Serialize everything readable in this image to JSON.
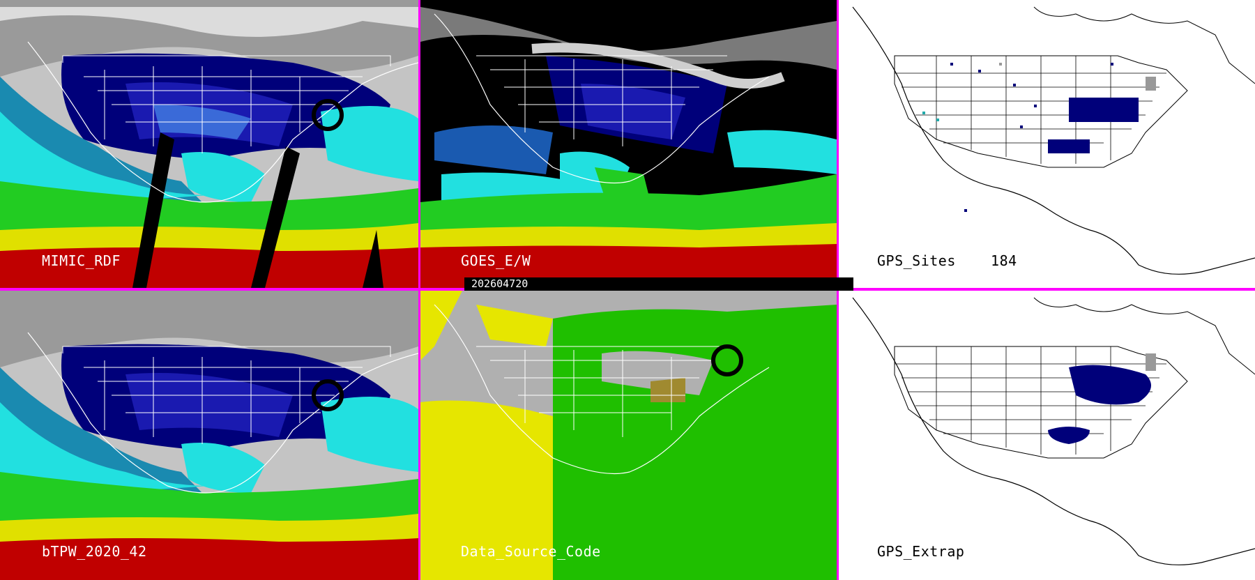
{
  "panels": [
    {
      "id": "mimic",
      "label": "MIMIC_RDF",
      "style": "tpw"
    },
    {
      "id": "goes",
      "label": "GOES_E/W",
      "style": "goes"
    },
    {
      "id": "gps-sites",
      "label": "GPS_Sites    184",
      "style": "gps"
    },
    {
      "id": "btpw",
      "label": "bTPW_2020_42",
      "style": "tpw"
    },
    {
      "id": "data-source",
      "label": "Data_Source_Code",
      "style": "source"
    },
    {
      "id": "gps-extrap",
      "label": "GPS_Extrap",
      "style": "gpsx"
    }
  ],
  "timestamp": "202604720",
  "colors": {
    "divider": "#ff00ff",
    "ocean_gray": "#c8c8c8",
    "cloud_white": "#e8e8e8",
    "dark_blue": "#00007a",
    "blue": "#1a1ab0",
    "cyan": "#22e0e0",
    "green": "#22cc22",
    "yellow": "#e0e000",
    "red": "#c00000",
    "source_yellow": "#e6e600",
    "source_green": "#1fbf00",
    "source_gray": "#b0b0b0"
  },
  "gps_sites_count": "184"
}
